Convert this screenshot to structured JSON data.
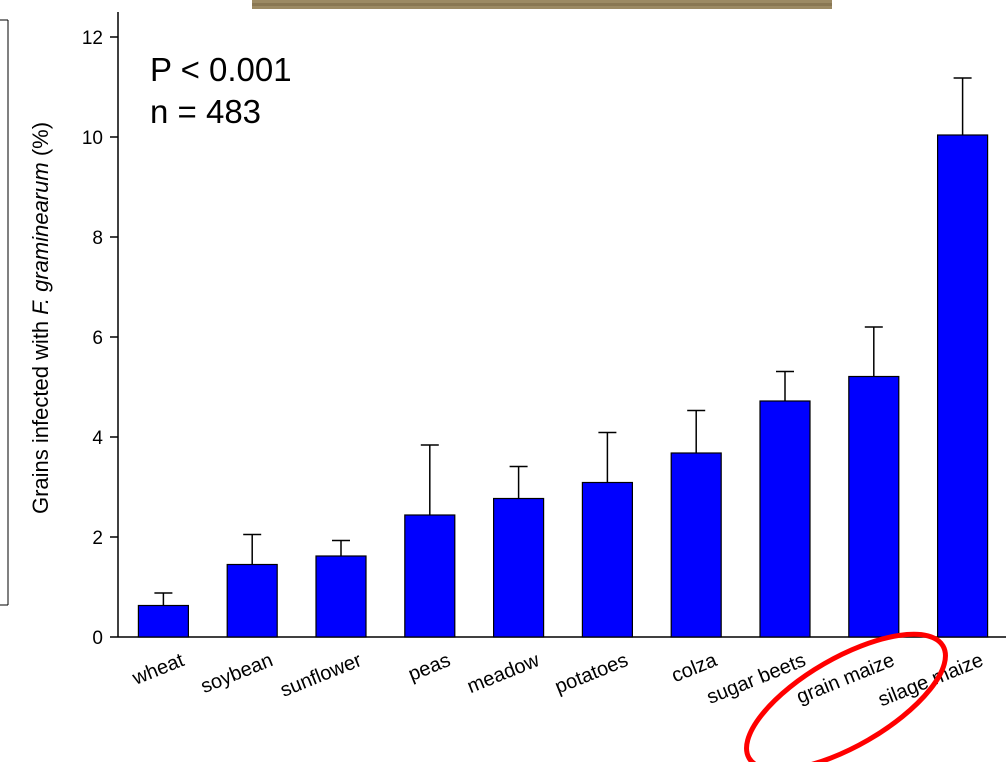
{
  "chart_data": {
    "type": "bar",
    "categories": [
      "wheat",
      "soybean",
      "sunflower",
      "peas",
      "meadow",
      "potatoes",
      "colza",
      "sugar beets",
      "grain maize",
      "silage maize"
    ],
    "values": [
      0.63,
      1.45,
      1.62,
      2.44,
      2.77,
      3.09,
      3.68,
      4.72,
      5.21,
      10.04
    ],
    "error_upper": [
      0.88,
      2.05,
      1.93,
      3.84,
      3.41,
      4.09,
      4.53,
      5.31,
      6.2,
      11.18
    ],
    "ylim": [
      0,
      12.5
    ],
    "yticks": [
      "0",
      "2",
      "4",
      "6",
      "8",
      "10",
      "12"
    ],
    "ytick_values": [
      0,
      2,
      4,
      6,
      8,
      10,
      12
    ],
    "ylabel_prefix": "Grains infected with ",
    "ylabel_italic": "F. graminearum",
    "ylabel_suffix": " (%)",
    "xlabel": "",
    "annotation_p": "P < 0.001",
    "annotation_n": "n = 483",
    "highlighted_categories": [
      "grain maize",
      "silage maize"
    ],
    "bar_color": "#0000ff",
    "highlight_color": "#ff0000",
    "photo_strip_color": "#9c8a64"
  }
}
